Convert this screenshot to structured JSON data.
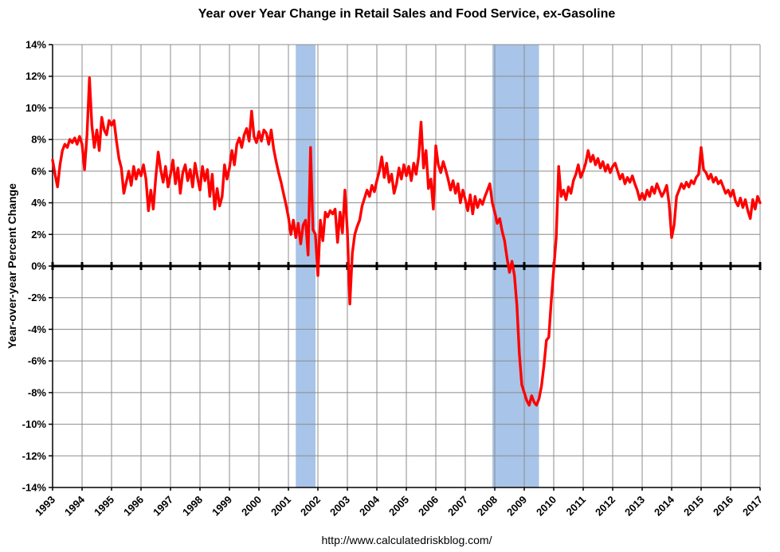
{
  "page": {
    "title": "Year over Year Change in Retail Sales and Food Service, ex-Gasoline",
    "footer_url": "http://www.calculatedriskblog.com/"
  },
  "chart_data": {
    "type": "line",
    "title": "Year over Year Change in Retail Sales and Food Service, ex-Gasoline",
    "xlabel": "",
    "ylabel": "Year-over-year Percent Change",
    "xlim": [
      1993,
      2017
    ],
    "ylim": [
      -14,
      14
    ],
    "grid": true,
    "legend_position": "none",
    "line_color": "#FF0000",
    "zero_line_color": "#000000",
    "grid_color": "#8C8C8C",
    "recession_band_color": "#A8C4E8",
    "x_tick_values": [
      1993,
      1994,
      1995,
      1996,
      1997,
      1998,
      1999,
      2000,
      2001,
      2002,
      2003,
      2004,
      2005,
      2006,
      2007,
      2008,
      2009,
      2010,
      2011,
      2012,
      2013,
      2014,
      2015,
      2016,
      2017
    ],
    "x_tick_labels": [
      "1993",
      "1994",
      "1995",
      "1996",
      "1997",
      "1998",
      "1999",
      "2000",
      "2001",
      "2002",
      "2003",
      "2004",
      "2005",
      "2006",
      "2007",
      "2008",
      "2009",
      "2010",
      "2011",
      "2012",
      "2013",
      "2014",
      "2015",
      "2016",
      "2017"
    ],
    "y_tick_values": [
      14,
      12,
      10,
      8,
      6,
      4,
      2,
      0,
      -2,
      -4,
      -6,
      -8,
      -10,
      -12,
      -14
    ],
    "y_tick_labels": [
      "14%",
      "12%",
      "10%",
      "8%",
      "6%",
      "4%",
      "2%",
      "0%",
      "-2%",
      "-4%",
      "-6%",
      "-8%",
      "-10%",
      "-12%",
      "-14%"
    ],
    "recession_bands": [
      {
        "label": "2001 recession",
        "start": 2001.25,
        "end": 2001.92
      },
      {
        "label": "2007-2009 recession",
        "start": 2007.92,
        "end": 2009.5
      }
    ],
    "series": [
      {
        "name": "Year-over-year percent change, retail sales and food service ex-gasoline",
        "frequency": "monthly",
        "start": "1993-01",
        "end": "2017-01",
        "values": [
          6.7,
          5.8,
          5.0,
          6.4,
          7.3,
          7.7,
          7.5,
          8.0,
          7.8,
          8.1,
          7.7,
          8.2,
          7.7,
          6.1,
          8.3,
          11.9,
          8.9,
          7.5,
          8.6,
          7.3,
          9.4,
          8.6,
          8.3,
          9.2,
          8.9,
          9.2,
          7.9,
          6.8,
          6.2,
          4.6,
          5.3,
          6.0,
          5.1,
          6.3,
          5.5,
          6.1,
          5.7,
          6.4,
          5.5,
          3.5,
          4.8,
          3.6,
          5.6,
          7.2,
          6.1,
          5.3,
          6.3,
          5.0,
          5.8,
          6.7,
          5.2,
          6.2,
          4.6,
          5.9,
          6.4,
          5.4,
          6.1,
          5.0,
          6.5,
          5.6,
          4.8,
          6.3,
          5.4,
          6.1,
          4.4,
          5.8,
          3.6,
          4.9,
          3.8,
          4.4,
          6.4,
          5.5,
          6.2,
          7.3,
          6.4,
          7.7,
          8.1,
          7.5,
          8.3,
          8.7,
          7.9,
          9.8,
          8.2,
          7.8,
          8.5,
          7.9,
          8.6,
          8.4,
          7.7,
          8.6,
          7.4,
          6.6,
          5.9,
          5.3,
          4.6,
          3.9,
          3.1,
          2.0,
          2.9,
          1.8,
          2.7,
          1.4,
          2.6,
          2.9,
          0.7,
          7.5,
          2.3,
          2.0,
          -0.6,
          2.9,
          1.6,
          3.4,
          3.1,
          3.5,
          3.3,
          3.6,
          1.5,
          3.4,
          2.1,
          4.8,
          2.2,
          -2.4,
          0.8,
          2.0,
          2.5,
          2.9,
          3.8,
          4.3,
          4.8,
          4.4,
          5.1,
          4.7,
          5.4,
          6.0,
          6.9,
          5.6,
          6.5,
          5.3,
          5.8,
          4.6,
          5.2,
          6.2,
          5.5,
          6.4,
          5.7,
          6.3,
          5.4,
          6.5,
          5.8,
          6.9,
          9.1,
          6.2,
          7.3,
          4.9,
          5.5,
          3.6,
          7.6,
          6.4,
          5.9,
          6.6,
          6.1,
          5.5,
          4.8,
          5.4,
          4.6,
          5.2,
          4.0,
          4.8,
          4.2,
          3.5,
          4.5,
          3.3,
          4.4,
          3.7,
          4.2,
          3.9,
          4.4,
          4.8,
          5.2,
          4.0,
          3.4,
          2.7,
          3.0,
          2.2,
          1.6,
          0.5,
          -0.4,
          0.3,
          -0.6,
          -2.5,
          -5.5,
          -7.5,
          -8.0,
          -8.5,
          -8.8,
          -8.2,
          -8.6,
          -8.8,
          -8.4,
          -7.6,
          -6.3,
          -4.7,
          -4.5,
          -2.2,
          -0.2,
          1.8,
          6.3,
          4.4,
          4.8,
          4.2,
          5.0,
          4.6,
          5.4,
          5.8,
          6.4,
          5.6,
          6.0,
          6.5,
          7.3,
          6.6,
          7.0,
          6.4,
          6.8,
          6.2,
          6.6,
          6.0,
          6.4,
          5.9,
          6.3,
          6.5,
          6.0,
          5.5,
          5.8,
          5.2,
          5.6,
          5.3,
          5.7,
          5.2,
          4.8,
          4.2,
          4.6,
          4.2,
          4.8,
          4.4,
          5.0,
          4.6,
          5.2,
          4.8,
          4.4,
          4.7,
          5.1,
          3.9,
          1.8,
          2.6,
          4.4,
          4.8,
          5.2,
          4.9,
          5.3,
          5.0,
          5.4,
          5.2,
          5.6,
          5.8,
          7.5,
          6.1,
          5.9,
          5.5,
          5.8,
          5.3,
          5.6,
          5.2,
          5.4,
          5.0,
          4.6,
          4.8,
          4.4,
          4.8,
          4.1,
          3.8,
          4.3,
          3.7,
          4.2,
          3.5,
          3.0,
          4.2,
          3.6,
          4.4,
          4.0
        ]
      }
    ]
  }
}
